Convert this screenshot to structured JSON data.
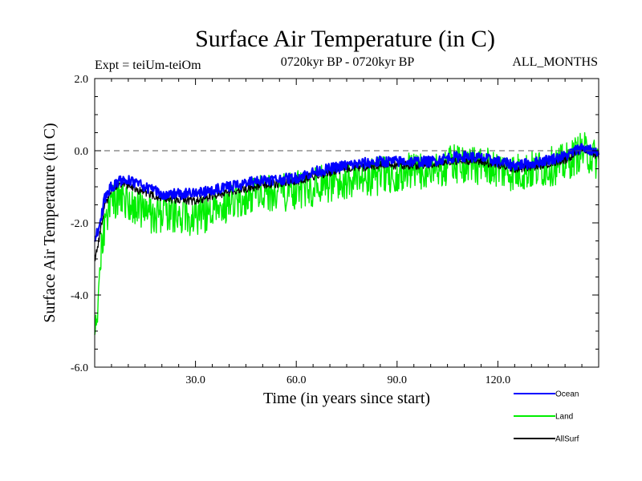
{
  "chart_data": {
    "type": "line",
    "title": "Surface Air Temperature (in C)",
    "subtitle_left": "Expt = teiUm-teiOm",
    "subtitle_center": "0720kyr BP - 0720kyr BP",
    "subtitle_right": "ALL_MONTHS",
    "xlabel": "Time (in years since start)",
    "ylabel": "Surface Air Temperature (in C)",
    "xlim": [
      0,
      150
    ],
    "ylim": [
      -6.0,
      2.0
    ],
    "xticks": [
      30,
      60,
      90,
      120
    ],
    "xtick_labels": [
      "30.0",
      "60.0",
      "90.0",
      "120.0"
    ],
    "yticks": [
      -6,
      -4,
      -2,
      0,
      2
    ],
    "ytick_labels": [
      "-6.0",
      "-4.0",
      "-2.0",
      "0.0",
      "2.0"
    ],
    "reference_line": 0.0,
    "legend_position": "bottom-right",
    "series": [
      {
        "name": "Ocean",
        "color": "#0000ff",
        "x": [
          0,
          1,
          2,
          3,
          5,
          8,
          10,
          12,
          15,
          18,
          20,
          25,
          30,
          35,
          40,
          45,
          50,
          55,
          60,
          65,
          70,
          75,
          80,
          85,
          90,
          95,
          100,
          105,
          110,
          115,
          120,
          125,
          130,
          135,
          140,
          145,
          148,
          150
        ],
        "values": [
          -2.5,
          -2.2,
          -1.8,
          -1.3,
          -1.0,
          -0.8,
          -0.8,
          -0.9,
          -1.0,
          -1.1,
          -1.2,
          -1.2,
          -1.2,
          -1.1,
          -1.0,
          -0.9,
          -0.8,
          -0.8,
          -0.75,
          -0.6,
          -0.5,
          -0.4,
          -0.35,
          -0.3,
          -0.3,
          -0.3,
          -0.3,
          -0.2,
          -0.15,
          -0.2,
          -0.3,
          -0.4,
          -0.35,
          -0.25,
          -0.15,
          0.1,
          0.0,
          -0.1
        ]
      },
      {
        "name": "Land",
        "color": "#00ee00",
        "x": [
          0,
          1,
          2,
          3,
          5,
          8,
          10,
          12,
          15,
          18,
          20,
          25,
          30,
          35,
          40,
          45,
          50,
          55,
          60,
          65,
          70,
          75,
          80,
          85,
          90,
          95,
          100,
          105,
          110,
          115,
          120,
          125,
          130,
          135,
          140,
          145,
          148,
          150
        ],
        "values": [
          -5.3,
          -4.0,
          -2.8,
          -2.0,
          -1.5,
          -1.2,
          -1.5,
          -1.6,
          -1.7,
          -1.8,
          -1.7,
          -1.8,
          -1.9,
          -1.6,
          -1.5,
          -1.4,
          -1.2,
          -1.2,
          -1.1,
          -1.0,
          -0.9,
          -0.8,
          -0.7,
          -0.7,
          -0.6,
          -0.6,
          -0.55,
          -0.4,
          -0.35,
          -0.4,
          -0.5,
          -0.6,
          -0.55,
          -0.45,
          -0.35,
          0.0,
          -0.15,
          -0.3
        ]
      },
      {
        "name": "AllSurf",
        "color": "#000000",
        "x": [
          0,
          1,
          2,
          3,
          5,
          8,
          10,
          12,
          15,
          18,
          20,
          25,
          30,
          35,
          40,
          45,
          50,
          55,
          60,
          65,
          70,
          75,
          80,
          85,
          90,
          95,
          100,
          105,
          110,
          115,
          120,
          125,
          130,
          135,
          140,
          145,
          148,
          150
        ],
        "values": [
          -3.0,
          -2.6,
          -2.1,
          -1.5,
          -1.1,
          -0.9,
          -0.95,
          -1.05,
          -1.15,
          -1.25,
          -1.3,
          -1.35,
          -1.4,
          -1.25,
          -1.15,
          -1.05,
          -0.95,
          -0.9,
          -0.85,
          -0.7,
          -0.6,
          -0.5,
          -0.45,
          -0.4,
          -0.4,
          -0.4,
          -0.4,
          -0.3,
          -0.25,
          -0.3,
          -0.4,
          -0.5,
          -0.45,
          -0.35,
          -0.25,
          0.05,
          -0.05,
          -0.15
        ]
      }
    ],
    "legend_labels": [
      "Ocean",
      "Land",
      "AllSurf"
    ]
  }
}
